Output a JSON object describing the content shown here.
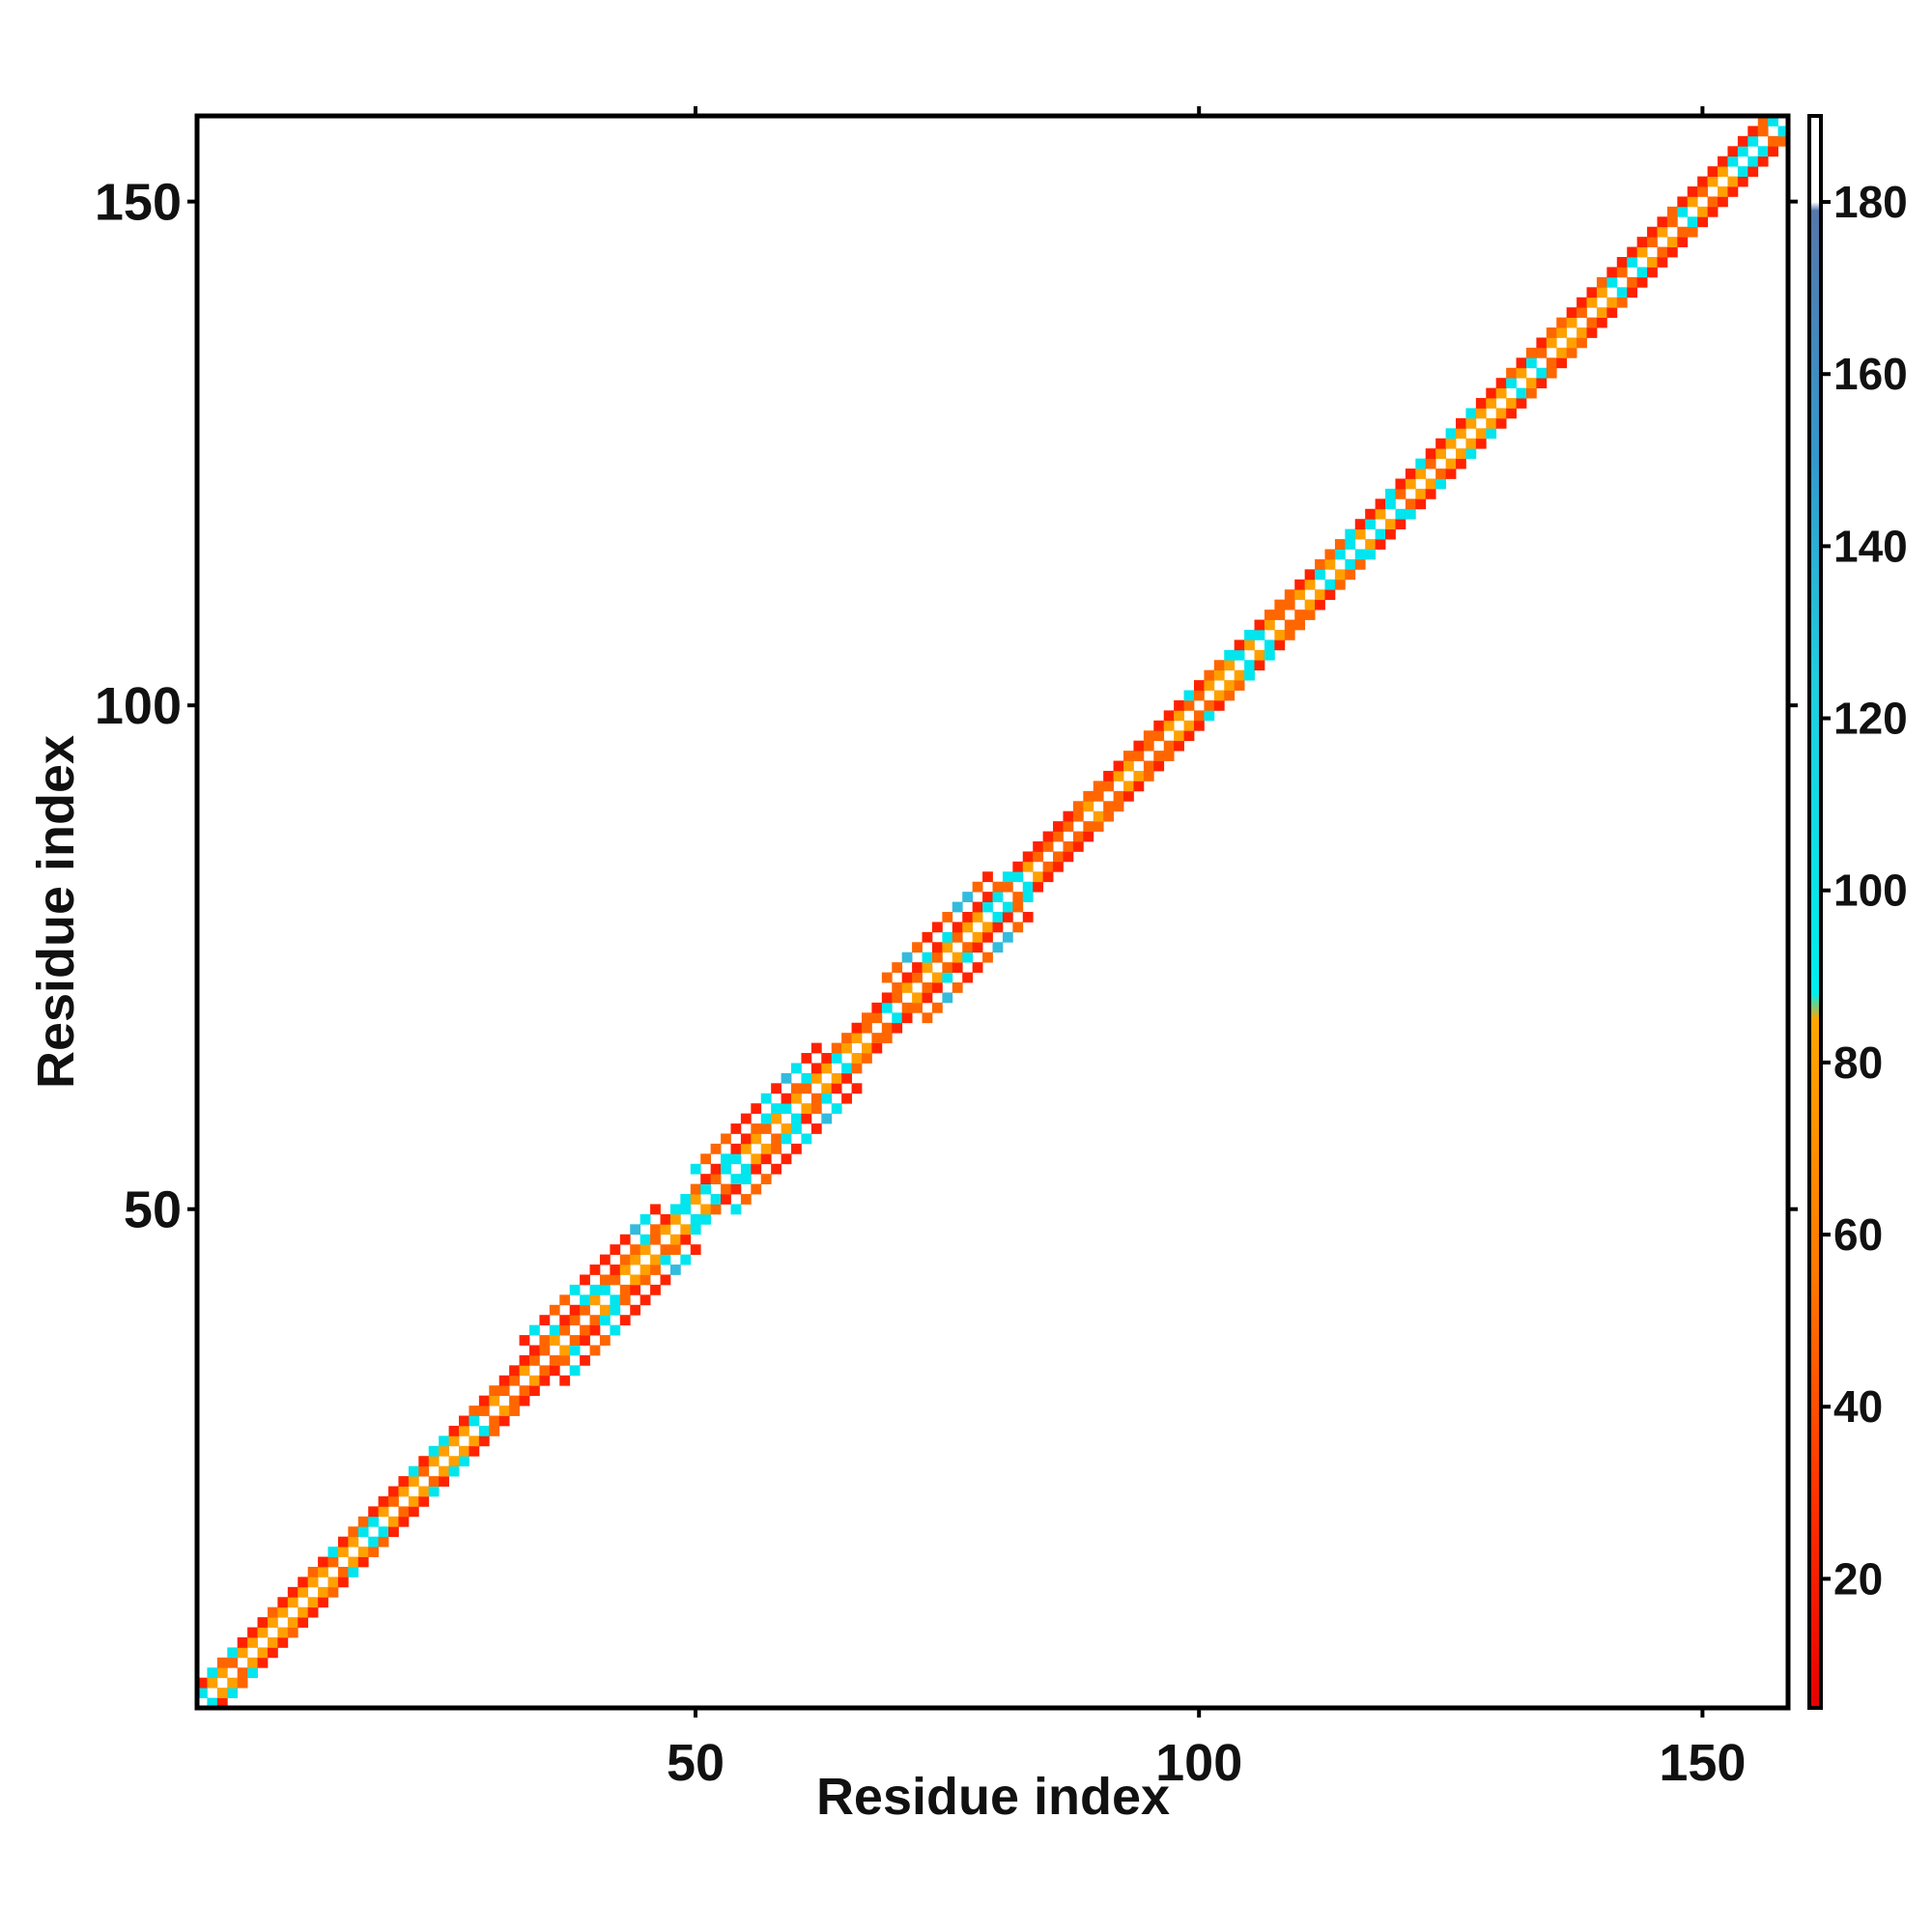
{
  "chart_data": {
    "type": "heatmap",
    "title": "",
    "xlabel": "Residue index",
    "ylabel": "Residue index",
    "xlim": [
      0.5,
      158.5
    ],
    "ylim": [
      0.5,
      158.5
    ],
    "x_ticks": [
      50,
      100,
      150
    ],
    "y_ticks": [
      50,
      100,
      150
    ],
    "grid": false,
    "legend": "none",
    "colorbar": {
      "placement": "right",
      "range": [
        5,
        190
      ],
      "ticks": [
        20,
        40,
        60,
        80,
        100,
        120,
        140,
        160,
        180
      ],
      "stops": [
        {
          "value": 5,
          "color": "#e60000"
        },
        {
          "value": 30,
          "color": "#ff3300"
        },
        {
          "value": 55,
          "color": "#ff7700"
        },
        {
          "value": 85,
          "color": "#ffa500"
        },
        {
          "value": 88,
          "color": "#00eeee"
        },
        {
          "value": 125,
          "color": "#22ccdd"
        },
        {
          "value": 150,
          "color": "#3399cc"
        },
        {
          "value": 179,
          "color": "#5577aa"
        },
        {
          "value": 180,
          "color": "#ffffff"
        },
        {
          "value": 190,
          "color": "#ffffff"
        }
      ]
    },
    "colors": {
      "diagonal": "#ffffff",
      "red": "#ff2200",
      "orange_red": "#ff6600",
      "orange": "#ffa000",
      "cyan": "#00e5ee",
      "light_blue": "#33bbdd"
    },
    "n_residues": 158,
    "bands": [
      {
        "from": 1,
        "to": 158,
        "halfwidth": 2,
        "pattern": "alternating red/orange with few cyan"
      },
      {
        "from": 33,
        "to": 50,
        "halfwidth": 5,
        "pattern": "beta-sheet block: red, orange, cyan"
      },
      {
        "from": 50,
        "to": 66,
        "halfwidth": 5,
        "pattern": "beta-sheet block: red, orange, cyan"
      },
      {
        "from": 69,
        "to": 83,
        "halfwidth": 5,
        "pattern": "beta-sheet block: red, orange, cyan"
      }
    ]
  }
}
